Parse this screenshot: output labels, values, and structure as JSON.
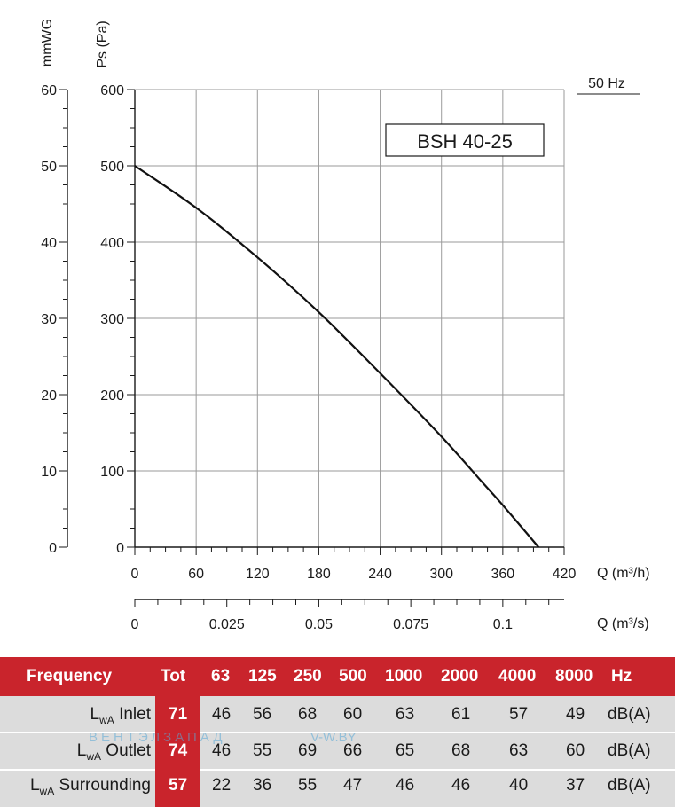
{
  "chart_data": {
    "type": "line",
    "title": "BSH 40-25",
    "frequency_label": "50 Hz",
    "left_axis": {
      "label": "mmWG",
      "ticks": [
        "0",
        "10",
        "20",
        "30",
        "40",
        "50",
        "60"
      ],
      "range": [
        0,
        60
      ]
    },
    "ylabel": "Ps (Pa)",
    "y_ticks": [
      "0",
      "100",
      "200",
      "300",
      "400",
      "500",
      "600"
    ],
    "ylim": [
      0,
      600
    ],
    "xlabel": "Q (m³/h)",
    "x_ticks": [
      "0",
      "60",
      "120",
      "180",
      "240",
      "300",
      "360",
      "420"
    ],
    "xlim": [
      0,
      420
    ],
    "x2label": "Q (m³/s)",
    "x2_ticks": [
      "0",
      "0.025",
      "0.05",
      "0.075",
      "0.1"
    ],
    "grid": true,
    "series": [
      {
        "x": [
          0,
          60,
          120,
          180,
          240,
          300,
          340,
          360,
          395
        ],
        "values": [
          500,
          445,
          380,
          308,
          228,
          145,
          85,
          55,
          0
        ]
      }
    ]
  },
  "table": {
    "headers": [
      "Frequency",
      "Tot",
      "63",
      "125",
      "250",
      "500",
      "1000",
      "2000",
      "4000",
      "8000",
      "Hz"
    ],
    "rows": [
      {
        "label_main": "L",
        "label_sub": "wA",
        "label_rest": " Inlet",
        "tot": "71",
        "values": [
          "46",
          "56",
          "68",
          "60",
          "63",
          "61",
          "57",
          "49"
        ],
        "unit": "dB(A)"
      },
      {
        "label_main": "L",
        "label_sub": "wA",
        "label_rest": " Outlet",
        "tot": "74",
        "values": [
          "46",
          "55",
          "69",
          "66",
          "65",
          "68",
          "63",
          "60"
        ],
        "unit": "dB(A)"
      },
      {
        "label_main": "L",
        "label_sub": "wA",
        "label_rest": " Surrounding",
        "tot": "57",
        "values": [
          "22",
          "36",
          "55",
          "47",
          "46",
          "46",
          "40",
          "37"
        ],
        "unit": "dB(A)"
      }
    ]
  },
  "watermark": {
    "brand": "ВЕНТЭЛЗАПАД",
    "site": "V-W.BY"
  }
}
